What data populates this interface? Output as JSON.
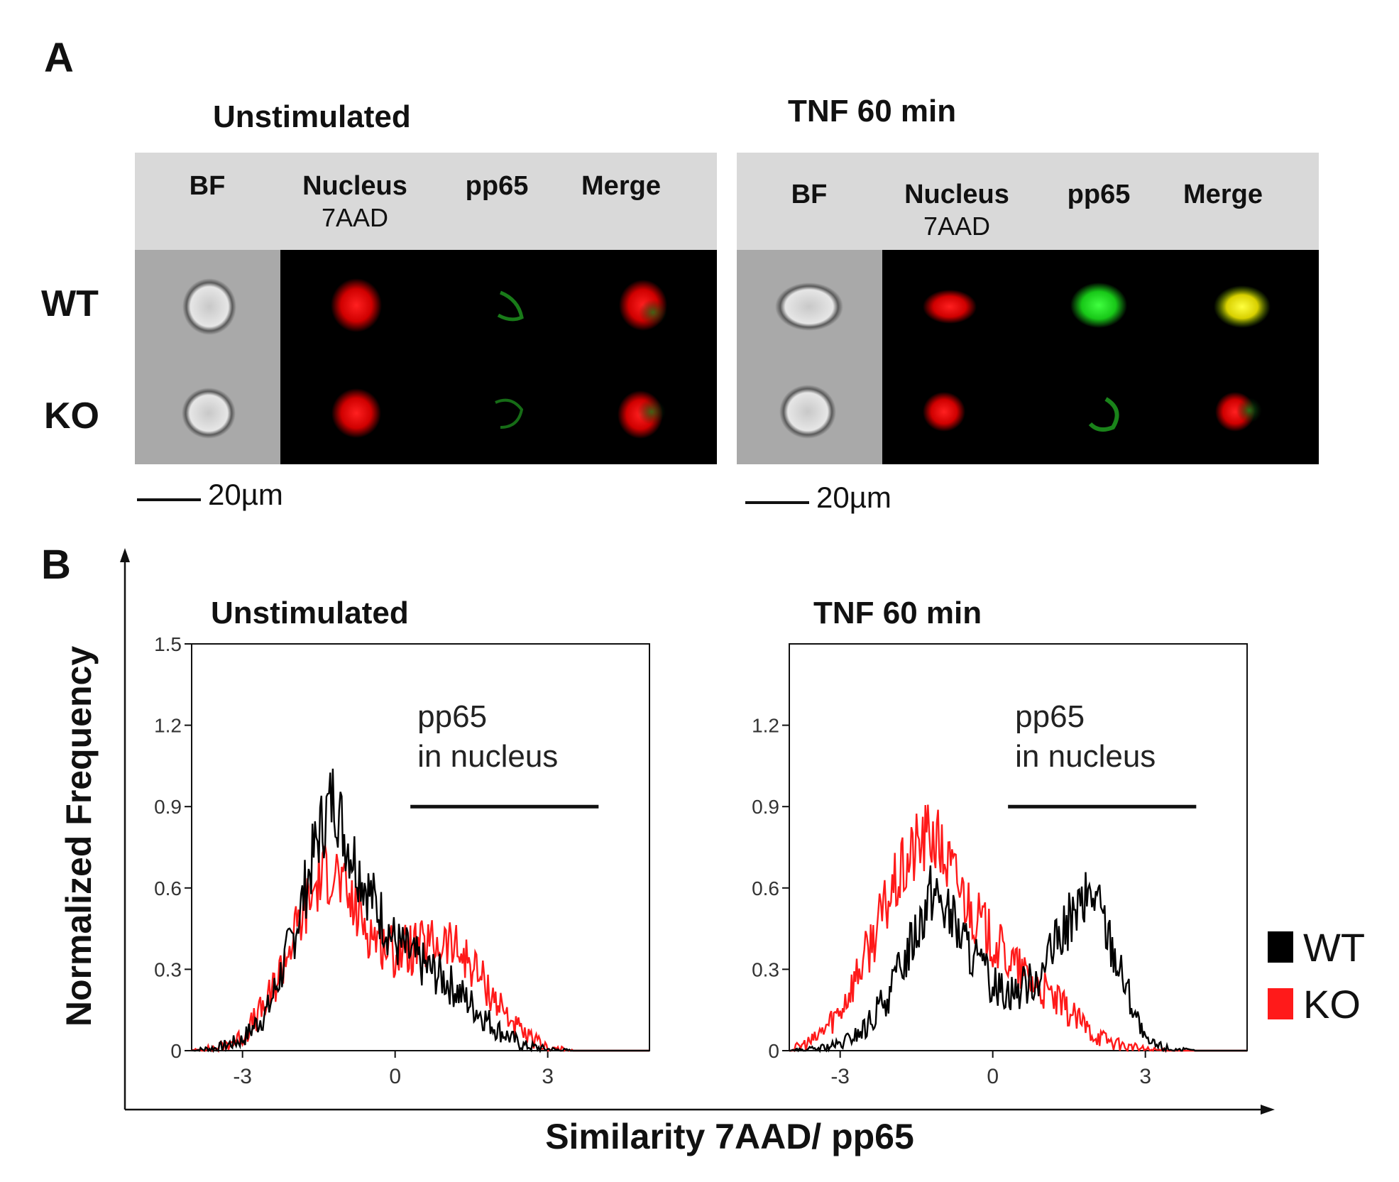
{
  "figure": {
    "panel_a_label": "A",
    "panel_b_label": "B",
    "conditions": [
      "Unstimulated",
      "TNF 60 min"
    ],
    "columns": [
      {
        "label": "BF",
        "sub": ""
      },
      {
        "label": "Nucleus",
        "sub": "7AAD"
      },
      {
        "label": "pp65",
        "sub": ""
      },
      {
        "label": "Merge",
        "sub": ""
      }
    ],
    "rows": [
      "WT",
      "KO"
    ],
    "scale_bar": "20µm",
    "y_axis_label": "Normalized Frequency",
    "x_axis_label": "Similarity 7AAD/ pp65",
    "annotation_line1": "pp65",
    "annotation_line2": "in nucleus",
    "legend": [
      {
        "name": "WT",
        "color": "#000000"
      },
      {
        "name": "KO",
        "color": "#ff1a1a"
      }
    ],
    "colors": {
      "wt": "#000000",
      "ko": "#ff1a1a",
      "header_bg": "#d9d9d9",
      "bf_bg": "#a9a9a9",
      "nucleus": "#ff1010",
      "pp65": "#1fdc1f",
      "merge_yellow": "#f5f000"
    }
  },
  "chart_data": [
    {
      "type": "line",
      "title": "Unstimulated",
      "xlabel": "Similarity 7AAD/ pp65",
      "ylabel": "Normalized Frequency",
      "xlim": [
        -4,
        5
      ],
      "ylim": [
        0,
        1.5
      ],
      "x_ticks": [
        "-3",
        "0",
        "3"
      ],
      "y_ticks": [
        "0",
        "0.3",
        "0.6",
        "0.9",
        "1.2",
        "1.5"
      ],
      "annotation": {
        "text": [
          "pp65",
          "in nucleus"
        ],
        "bar_range": [
          0.3,
          4.0
        ],
        "bar_y": 0.9
      },
      "series": [
        {
          "name": "WT",
          "color": "#000000",
          "x": [
            -4,
            -3.5,
            -3,
            -2.5,
            -2,
            -1.5,
            -1.2,
            -1,
            -0.5,
            0,
            0.5,
            1,
            1.5,
            2,
            2.5,
            3,
            3.5,
            4,
            5
          ],
          "values": [
            0,
            0.01,
            0.04,
            0.15,
            0.42,
            0.8,
            0.95,
            0.8,
            0.58,
            0.4,
            0.32,
            0.26,
            0.17,
            0.08,
            0.02,
            0.005,
            0,
            0,
            0
          ]
        },
        {
          "name": "KO",
          "color": "#ff1a1a",
          "x": [
            -4,
            -3.5,
            -3,
            -2.5,
            -2,
            -1.5,
            -1.2,
            -1,
            -0.5,
            0,
            0.5,
            1,
            1.5,
            2,
            2.5,
            3,
            3.5,
            4,
            5
          ],
          "values": [
            0,
            0.01,
            0.05,
            0.18,
            0.42,
            0.63,
            0.68,
            0.58,
            0.44,
            0.36,
            0.38,
            0.4,
            0.32,
            0.18,
            0.06,
            0.01,
            0,
            0,
            0
          ]
        }
      ]
    },
    {
      "type": "line",
      "title": "TNF 60 min",
      "xlabel": "Similarity 7AAD/ pp65",
      "ylabel": "Normalized Frequency",
      "xlim": [
        -4,
        5
      ],
      "ylim": [
        0,
        1.5
      ],
      "x_ticks": [
        "-3",
        "0",
        "3"
      ],
      "y_ticks": [
        "0",
        "0.3",
        "0.6",
        "0.9",
        "1.2"
      ],
      "annotation": {
        "text": [
          "pp65",
          "in nucleus"
        ],
        "bar_range": [
          0.3,
          4.0
        ],
        "bar_y": 0.9
      },
      "series": [
        {
          "name": "WT",
          "color": "#000000",
          "x": [
            -4,
            -3.5,
            -3,
            -2.5,
            -2,
            -1.5,
            -1.2,
            -1,
            -0.5,
            0,
            0.5,
            1,
            1.5,
            2,
            2.5,
            3,
            3.5,
            4,
            5
          ],
          "values": [
            0,
            0.005,
            0.02,
            0.08,
            0.22,
            0.45,
            0.6,
            0.55,
            0.38,
            0.24,
            0.22,
            0.3,
            0.48,
            0.58,
            0.3,
            0.03,
            0.005,
            0,
            0
          ]
        },
        {
          "name": "KO",
          "color": "#ff1a1a",
          "x": [
            -4,
            -3.5,
            -3,
            -2.5,
            -2,
            -1.5,
            -1.2,
            -1,
            -0.5,
            0,
            0.5,
            1,
            1.5,
            2,
            2.5,
            3,
            3.5,
            4,
            5
          ],
          "values": [
            0,
            0.04,
            0.15,
            0.35,
            0.58,
            0.75,
            0.8,
            0.73,
            0.55,
            0.4,
            0.3,
            0.22,
            0.14,
            0.06,
            0.02,
            0.005,
            0,
            0,
            0
          ]
        }
      ]
    }
  ]
}
